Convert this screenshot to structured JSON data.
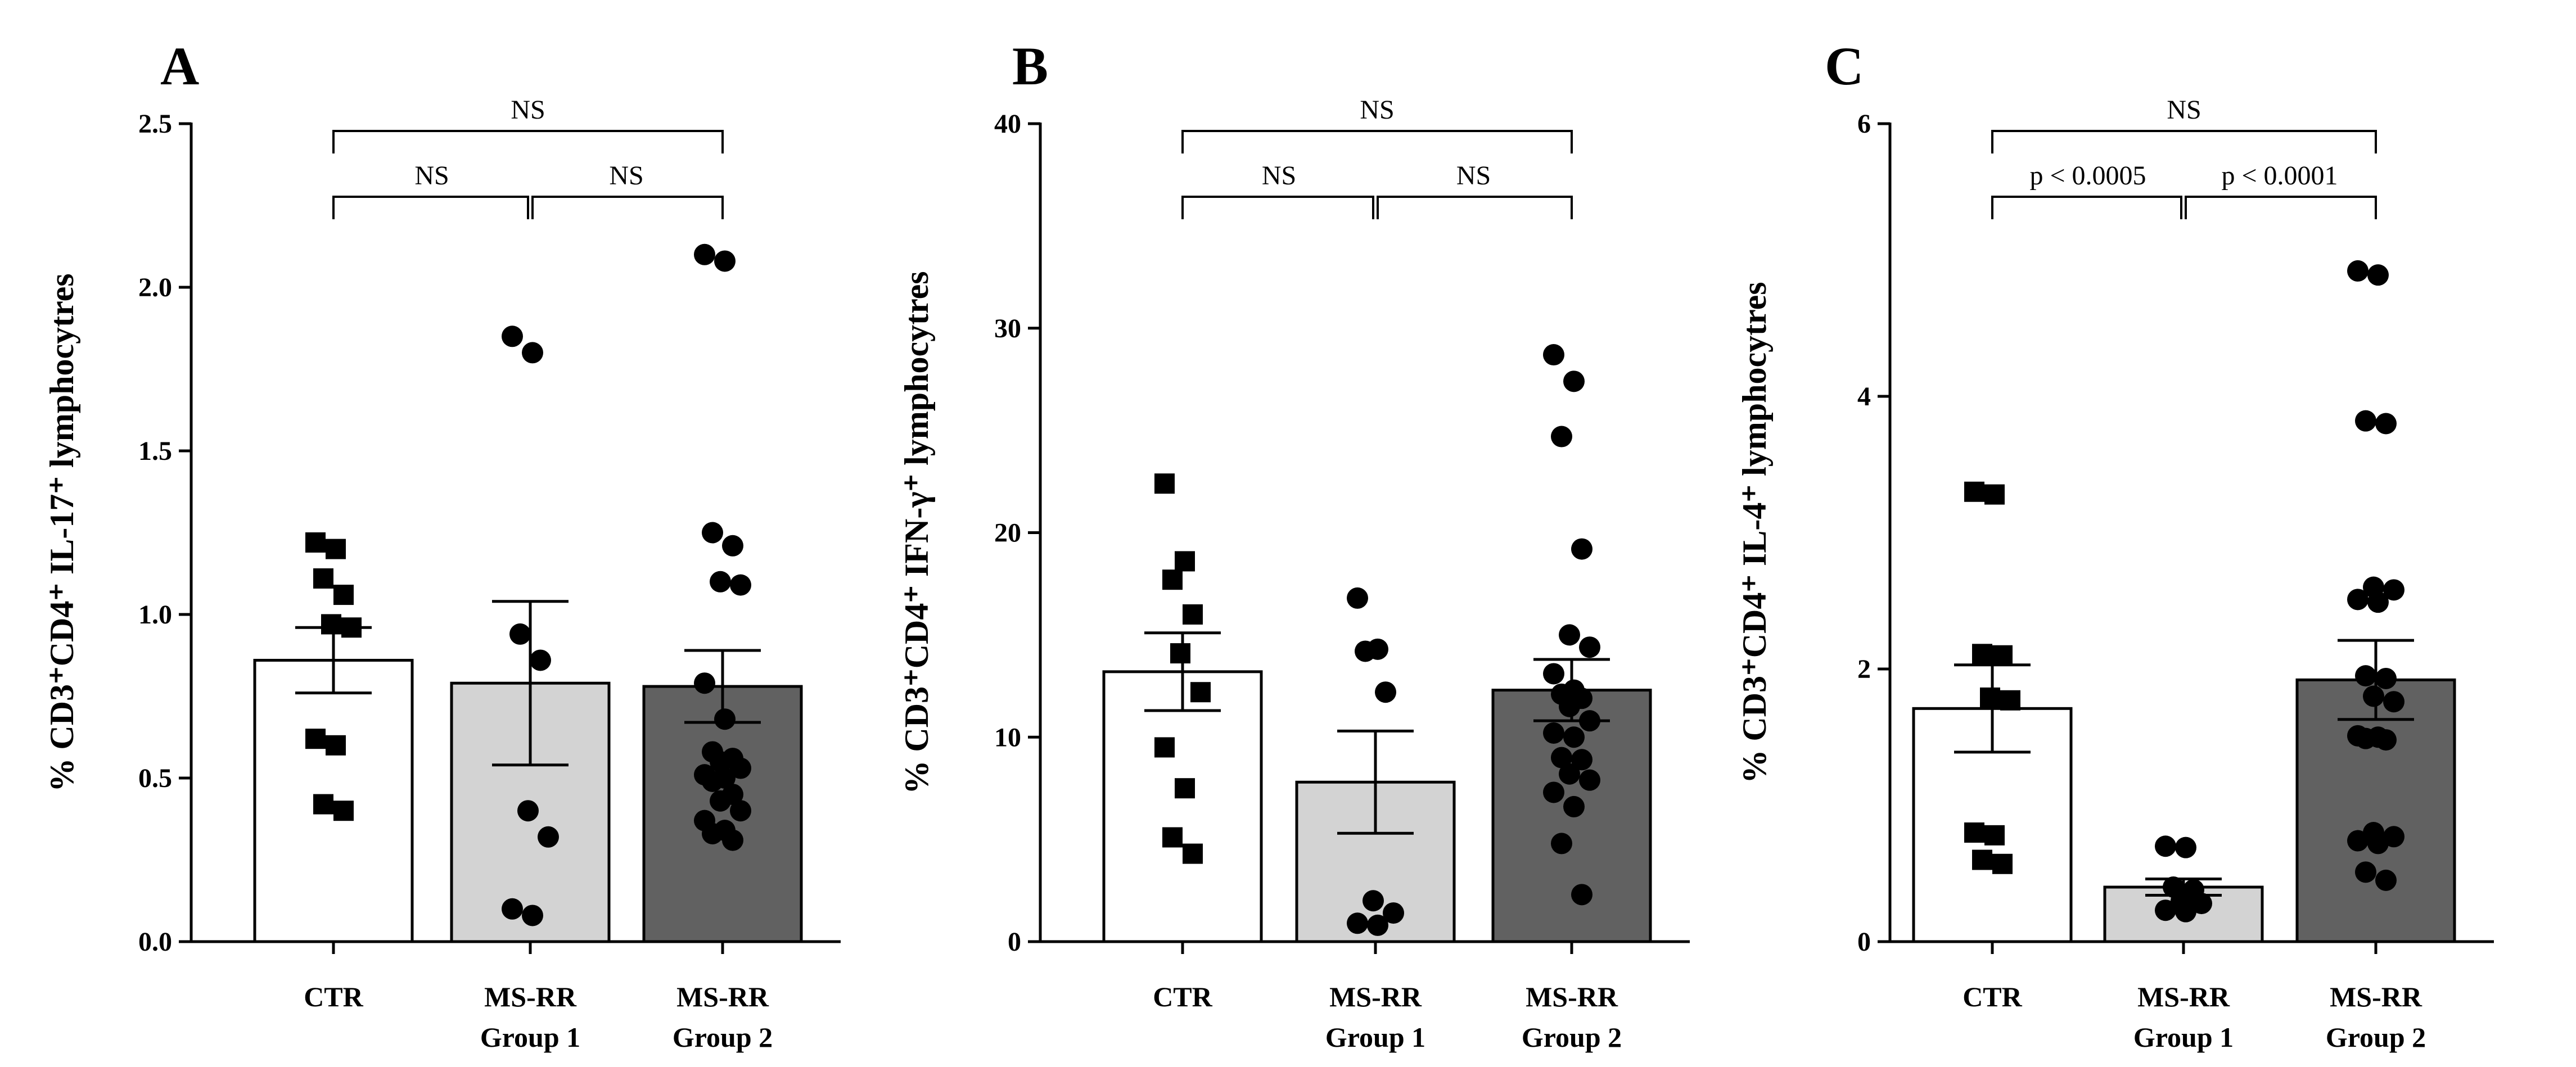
{
  "chart_data": [
    {
      "type": "bar",
      "panel": "A",
      "ylabel": "% CD3⁺CD4⁺ IL-17⁺ lymphocytres",
      "ylim": [
        0,
        2.5
      ],
      "yticks": [
        0.0,
        0.5,
        1.0,
        1.5,
        2.0,
        2.5
      ],
      "tick_labels": [
        "0.0",
        "0.5",
        "1.0",
        "1.5",
        "2.0",
        "2.5"
      ],
      "categories": [
        [
          "CTR"
        ],
        [
          "MS-RR",
          "Group 1"
        ],
        [
          "MS-RR",
          "Group 2"
        ]
      ],
      "values": [
        0.86,
        0.79,
        0.78
      ],
      "sem": [
        0.1,
        0.25,
        0.11
      ],
      "colors": [
        "#ffffff",
        "#d3d3d3",
        "#616161"
      ],
      "markers": [
        "square",
        "circle",
        "circle"
      ],
      "points": [
        [
          1.22,
          1.2,
          1.11,
          1.06,
          0.97,
          0.96,
          0.62,
          0.6,
          0.42,
          0.4
        ],
        [
          1.85,
          1.8,
          0.94,
          0.86,
          0.4,
          0.32,
          0.1,
          0.08
        ],
        [
          2.1,
          2.08,
          1.25,
          1.21,
          1.1,
          1.09,
          0.79,
          0.68,
          0.58,
          0.56,
          0.55,
          0.53,
          0.51,
          0.5,
          0.49,
          0.45,
          0.43,
          0.4,
          0.37,
          0.34,
          0.33,
          0.31
        ]
      ],
      "comparisons": [
        {
          "from": 0,
          "to": 1,
          "label": "NS"
        },
        {
          "from": 1,
          "to": 2,
          "label": "NS"
        },
        {
          "from": 0,
          "to": 2,
          "label": "NS"
        }
      ]
    },
    {
      "type": "bar",
      "panel": "B",
      "ylabel": "% CD3⁺CD4⁺ IFN-γ⁺ lymphocytres",
      "ylim": [
        0,
        40
      ],
      "yticks": [
        0,
        10,
        20,
        30,
        40
      ],
      "tick_labels": [
        "0",
        "10",
        "20",
        "30",
        "40"
      ],
      "categories": [
        [
          "CTR"
        ],
        [
          "MS-RR",
          "Group 1"
        ],
        [
          "MS-RR",
          "Group 2"
        ]
      ],
      "values": [
        13.2,
        7.8,
        12.3
      ],
      "sem": [
        1.9,
        2.5,
        1.5
      ],
      "colors": [
        "#ffffff",
        "#d3d3d3",
        "#616161"
      ],
      "markers": [
        "square",
        "circle",
        "circle"
      ],
      "points": [
        [
          22.4,
          18.6,
          17.7,
          16.0,
          14.1,
          12.2,
          9.5,
          7.5,
          5.1,
          4.3
        ],
        [
          16.8,
          14.3,
          14.2,
          12.2,
          2.0,
          1.4,
          0.9,
          0.8
        ],
        [
          28.7,
          27.4,
          24.7,
          19.2,
          15.0,
          14.4,
          13.1,
          12.3,
          12.1,
          11.9,
          11.5,
          10.8,
          10.2,
          10.0,
          9.0,
          8.9,
          8.2,
          7.9,
          7.3,
          6.6,
          4.8,
          2.3
        ]
      ],
      "comparisons": [
        {
          "from": 0,
          "to": 1,
          "label": "NS"
        },
        {
          "from": 1,
          "to": 2,
          "label": "NS"
        },
        {
          "from": 0,
          "to": 2,
          "label": "NS"
        }
      ]
    },
    {
      "type": "bar",
      "panel": "C",
      "ylabel": "% CD3⁺CD4⁺ IL-4⁺ lymphocytres",
      "ylim": [
        0,
        6
      ],
      "yticks": [
        0,
        2,
        4,
        6
      ],
      "tick_labels": [
        "0",
        "2",
        "4",
        "6"
      ],
      "categories": [
        [
          "CTR"
        ],
        [
          "MS-RR",
          "Group 1"
        ],
        [
          "MS-RR",
          "Group 2"
        ]
      ],
      "values": [
        1.71,
        0.4,
        1.92
      ],
      "sem": [
        0.32,
        0.06,
        0.29
      ],
      "colors": [
        "#ffffff",
        "#d3d3d3",
        "#616161"
      ],
      "markers": [
        "square",
        "circle",
        "circle"
      ],
      "points": [
        [
          3.3,
          3.28,
          2.11,
          2.1,
          1.79,
          1.77,
          0.8,
          0.78,
          0.6,
          0.57
        ],
        [
          0.7,
          0.69,
          0.4,
          0.38,
          0.3,
          0.28,
          0.23,
          0.22
        ],
        [
          4.92,
          4.89,
          3.82,
          3.8,
          2.6,
          2.58,
          2.51,
          2.49,
          1.95,
          1.93,
          1.8,
          1.76,
          1.51,
          1.5,
          1.49,
          1.48,
          0.8,
          0.77,
          0.74,
          0.72,
          0.51,
          0.45
        ]
      ],
      "comparisons": [
        {
          "from": 0,
          "to": 1,
          "label": "p < 0.0005"
        },
        {
          "from": 1,
          "to": 2,
          "label": "p < 0.0001"
        },
        {
          "from": 0,
          "to": 2,
          "label": "NS"
        }
      ]
    }
  ]
}
